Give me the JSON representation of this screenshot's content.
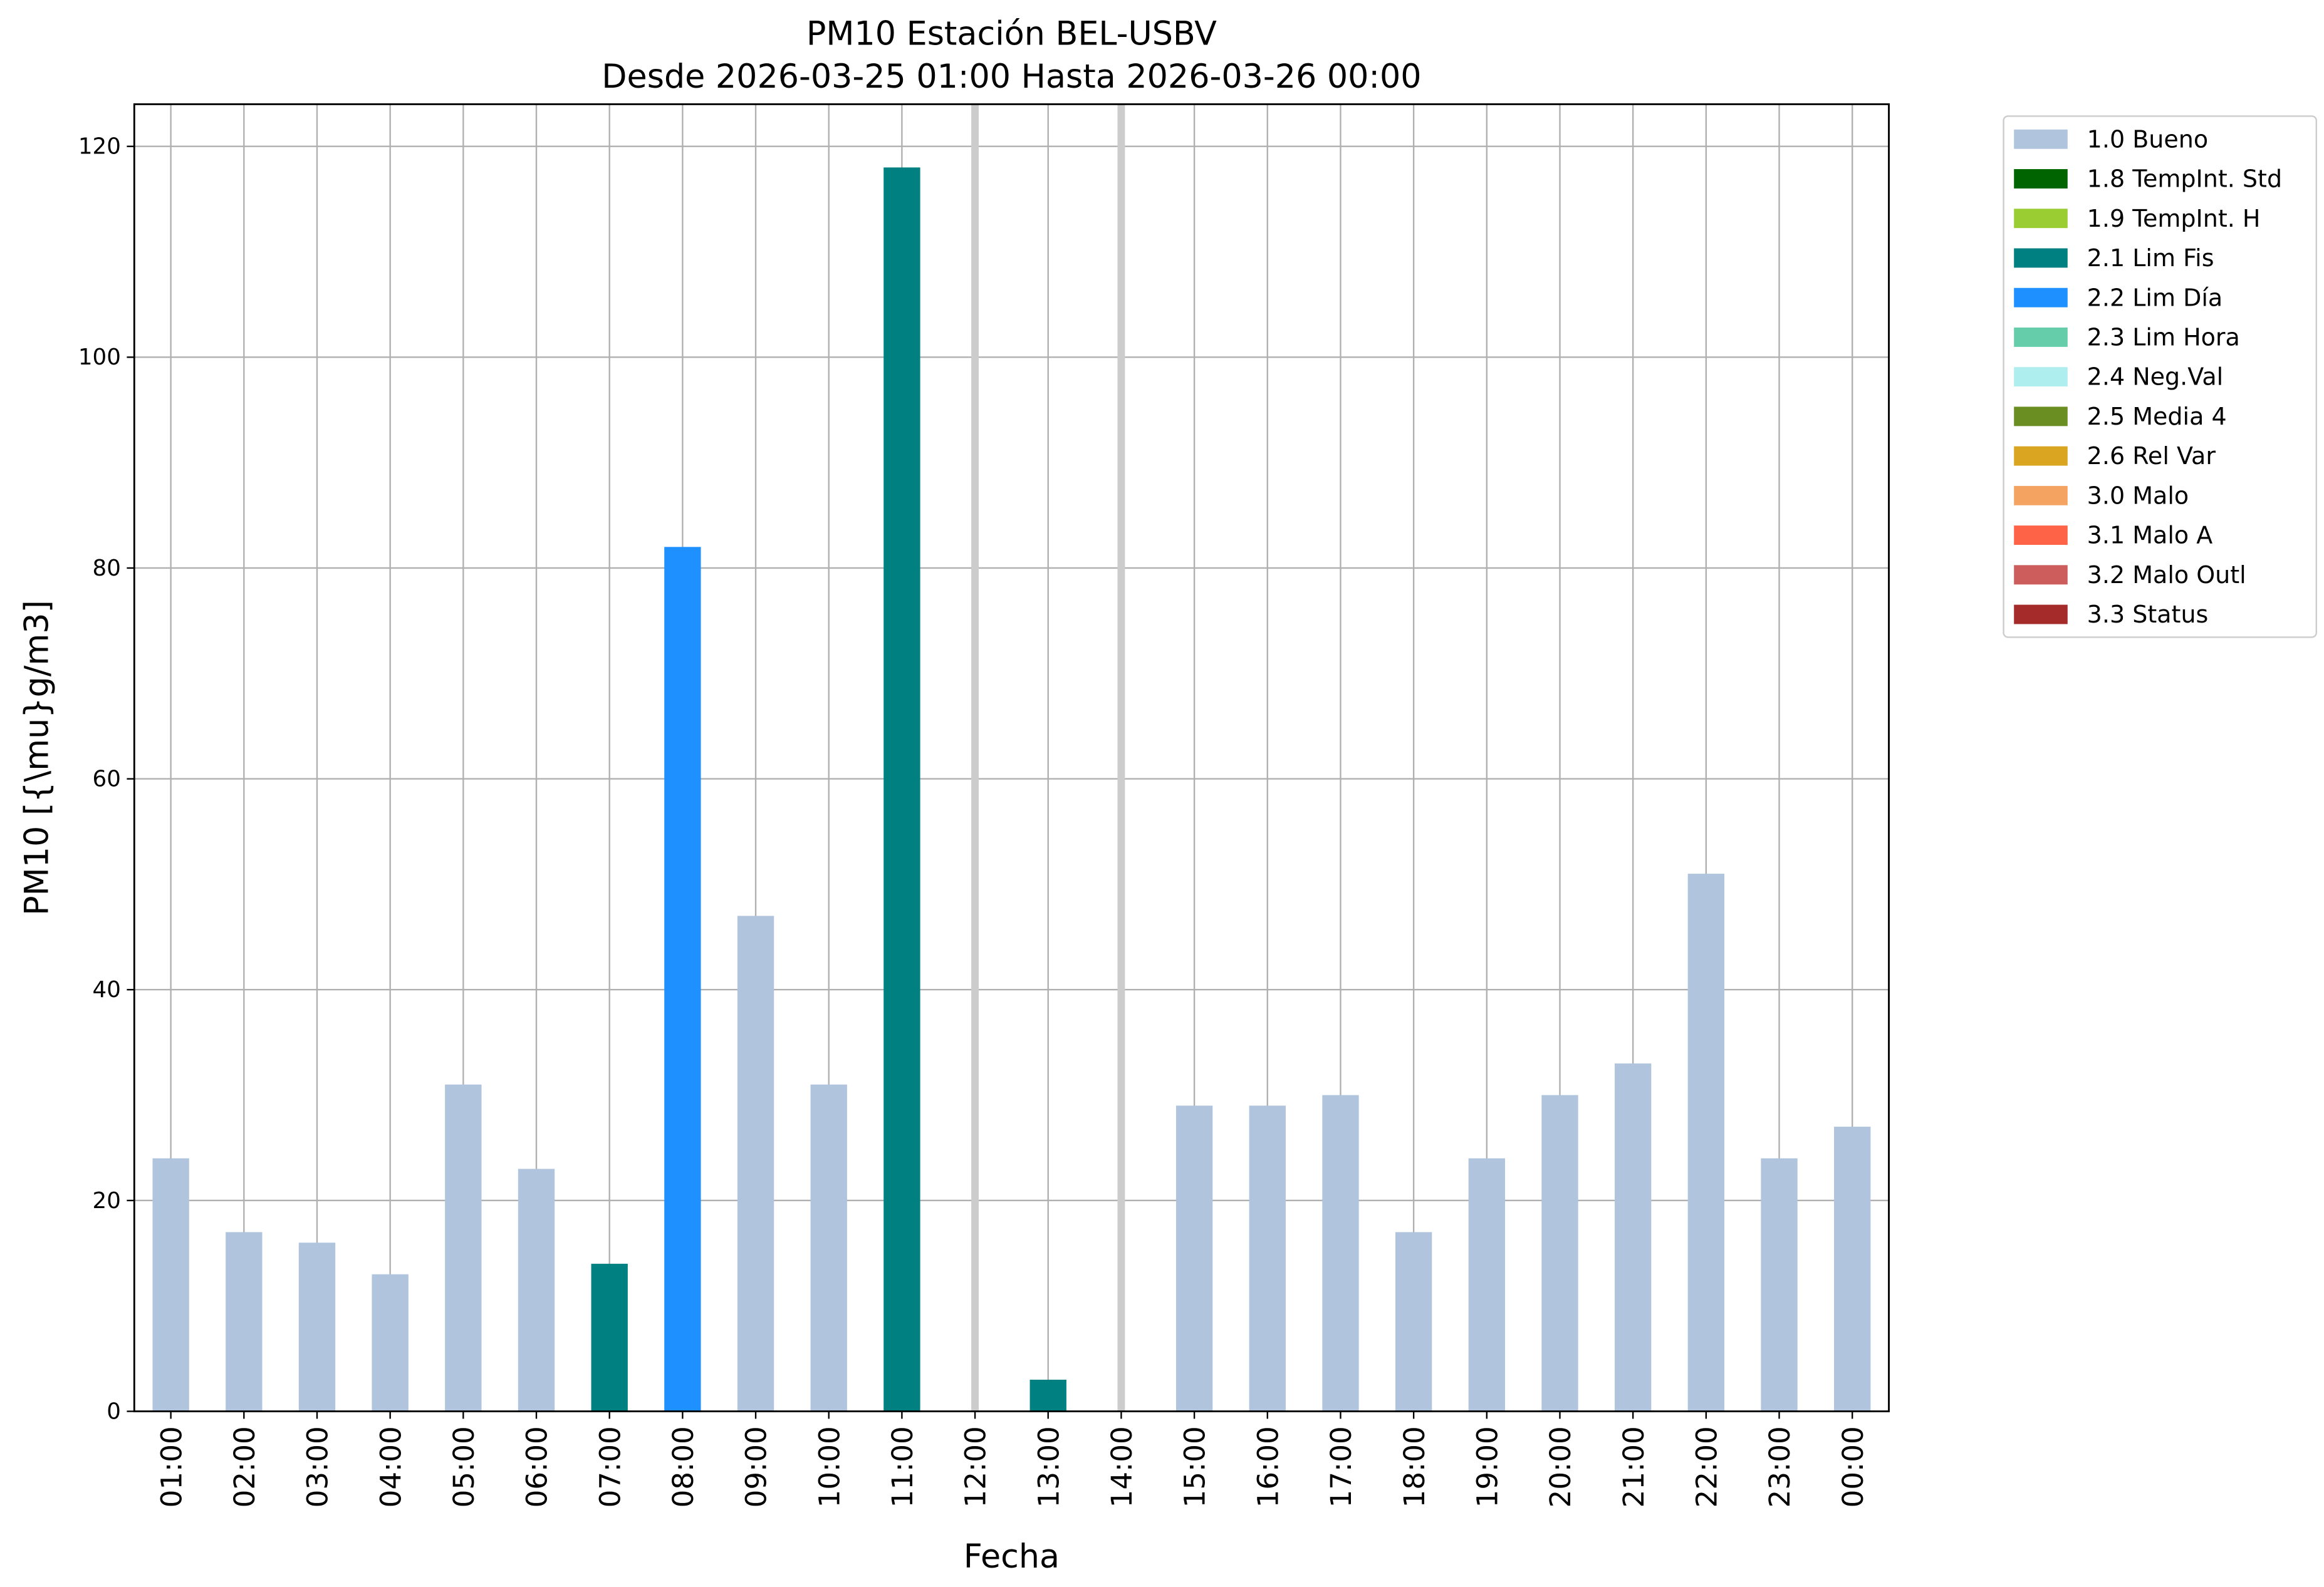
{
  "chart_data": {
    "type": "bar",
    "stacked": true,
    "title": "PM10 Estación BEL-USBV",
    "subtitle": "Desde 2026-03-25 01:00 Hasta 2026-03-26 00:00",
    "x_label": "Fecha",
    "y_label": "PM10 [{\\mu}g/m3]",
    "categories": [
      "01:00",
      "02:00",
      "03:00",
      "04:00",
      "05:00",
      "06:00",
      "07:00",
      "08:00",
      "09:00",
      "10:00",
      "11:00",
      "12:00",
      "13:00",
      "14:00",
      "15:00",
      "16:00",
      "17:00",
      "18:00",
      "19:00",
      "20:00",
      "21:00",
      "22:00",
      "23:00",
      "00:00"
    ],
    "ylim": [
      0,
      124
    ],
    "yticks": [
      0,
      20,
      40,
      60,
      80,
      100,
      120
    ],
    "grid": true,
    "legend": "outside right",
    "series": [
      {
        "name": "1.0 Bueno",
        "color": "#b0c4de",
        "values": [
          24,
          17,
          16,
          13,
          31,
          23,
          null,
          null,
          47,
          31,
          null,
          null,
          null,
          null,
          29,
          29,
          30,
          17,
          24,
          30,
          33,
          51,
          24,
          27
        ]
      },
      {
        "name": "1.8 TempInt. Std",
        "color": "#006400",
        "values": [
          null,
          null,
          null,
          null,
          null,
          null,
          null,
          null,
          null,
          null,
          null,
          null,
          null,
          null,
          null,
          null,
          null,
          null,
          null,
          null,
          null,
          null,
          null,
          null
        ]
      },
      {
        "name": "1.9 TempInt. H",
        "color": "#9acd32",
        "values": [
          null,
          null,
          null,
          null,
          null,
          null,
          null,
          null,
          null,
          null,
          null,
          null,
          null,
          null,
          null,
          null,
          null,
          null,
          null,
          null,
          null,
          null,
          null,
          null
        ]
      },
      {
        "name": "2.1 Lim Fis",
        "color": "#008080",
        "values": [
          null,
          null,
          null,
          null,
          null,
          null,
          14,
          null,
          null,
          null,
          118,
          null,
          3,
          null,
          null,
          null,
          null,
          null,
          null,
          null,
          null,
          null,
          null,
          null
        ]
      },
      {
        "name": "2.2 Lim Día",
        "color": "#1e90ff",
        "values": [
          null,
          null,
          null,
          null,
          null,
          null,
          null,
          82,
          null,
          null,
          null,
          null,
          null,
          null,
          null,
          null,
          null,
          null,
          null,
          null,
          null,
          null,
          null,
          null
        ]
      },
      {
        "name": "2.3 Lim Hora",
        "color": "#66cdaa",
        "values": [
          null,
          null,
          null,
          null,
          null,
          null,
          null,
          null,
          null,
          null,
          null,
          null,
          null,
          null,
          null,
          null,
          null,
          null,
          null,
          null,
          null,
          null,
          null,
          null
        ]
      },
      {
        "name": "2.4 Neg.Val",
        "color": "#afeeee",
        "values": [
          null,
          null,
          null,
          null,
          null,
          null,
          null,
          null,
          null,
          null,
          null,
          null,
          null,
          null,
          null,
          null,
          null,
          null,
          null,
          null,
          null,
          null,
          null,
          null
        ]
      },
      {
        "name": "2.5 Media 4",
        "color": "#6b8e23",
        "values": [
          null,
          null,
          null,
          null,
          null,
          null,
          null,
          null,
          null,
          null,
          null,
          null,
          null,
          null,
          null,
          null,
          null,
          null,
          null,
          null,
          null,
          null,
          null,
          null
        ]
      },
      {
        "name": "2.6 Rel Var",
        "color": "#daa520",
        "values": [
          null,
          null,
          null,
          null,
          null,
          null,
          null,
          null,
          null,
          null,
          null,
          null,
          null,
          null,
          null,
          null,
          null,
          null,
          null,
          null,
          null,
          null,
          null,
          null
        ]
      },
      {
        "name": "3.0 Malo",
        "color": "#f4a460",
        "values": [
          null,
          null,
          null,
          null,
          null,
          null,
          null,
          null,
          null,
          null,
          null,
          null,
          null,
          null,
          null,
          null,
          null,
          null,
          null,
          null,
          null,
          null,
          null,
          null
        ]
      },
      {
        "name": "3.1 Malo A",
        "color": "#ff6347",
        "values": [
          null,
          null,
          null,
          null,
          null,
          null,
          null,
          null,
          null,
          null,
          null,
          null,
          null,
          null,
          null,
          null,
          null,
          null,
          null,
          null,
          null,
          null,
          null,
          null
        ]
      },
      {
        "name": "3.2 Malo Outl",
        "color": "#cd5c5c",
        "values": [
          null,
          null,
          null,
          null,
          null,
          null,
          null,
          null,
          null,
          null,
          null,
          null,
          null,
          null,
          null,
          null,
          null,
          null,
          null,
          null,
          null,
          null,
          null,
          null
        ]
      },
      {
        "name": "3.3 Status",
        "color": "#a52a2a",
        "values": [
          null,
          null,
          null,
          null,
          null,
          null,
          null,
          null,
          null,
          null,
          null,
          null,
          null,
          null,
          null,
          null,
          null,
          null,
          null,
          null,
          null,
          null,
          null,
          null
        ]
      }
    ]
  }
}
